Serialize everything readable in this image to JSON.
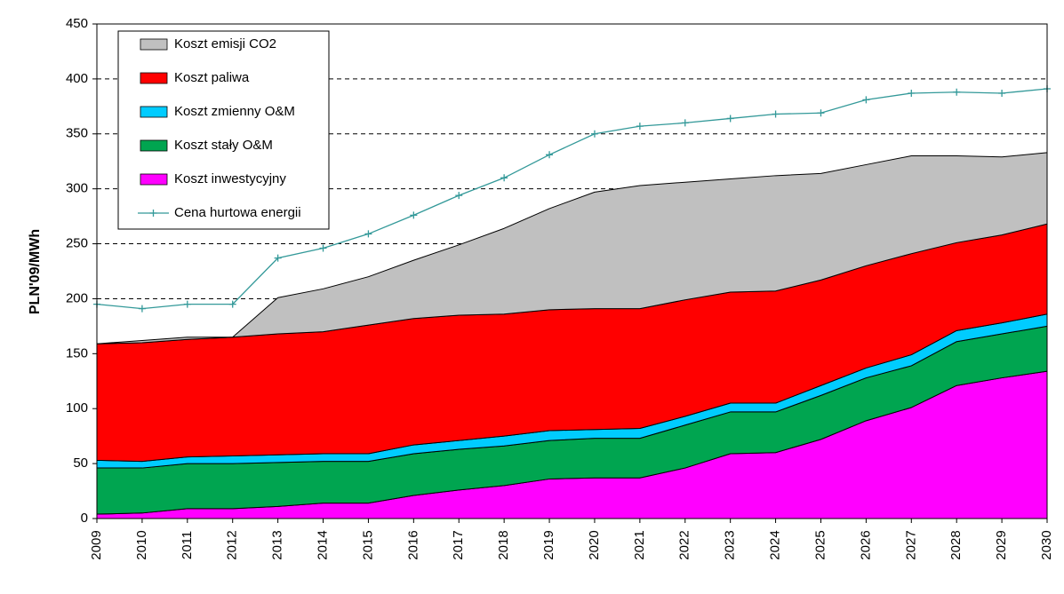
{
  "chart_data": {
    "type": "area",
    "y_label": "PLN'09/MWh",
    "categories": [
      "2009",
      "2010",
      "2011",
      "2012",
      "2013",
      "2014",
      "2015",
      "2016",
      "2017",
      "2018",
      "2019",
      "2020",
      "2021",
      "2022",
      "2023",
      "2024",
      "2025",
      "2026",
      "2027",
      "2028",
      "2029",
      "2030"
    ],
    "ylim": [
      0,
      450
    ],
    "yticks": [
      0,
      50,
      100,
      150,
      200,
      250,
      300,
      350,
      400,
      450
    ],
    "grid": true,
    "stacked": true,
    "legend": "upper left",
    "series": [
      {
        "name": "Koszt emisji CO2",
        "color": "#c0c0c0",
        "values": [
          0,
          2,
          2,
          0,
          33,
          39,
          44,
          53,
          64,
          78,
          92,
          106,
          112,
          107,
          103,
          105,
          97,
          92,
          89,
          79,
          71,
          65
        ]
      },
      {
        "name": "Koszt paliwa",
        "color": "#ff0000",
        "values": [
          106,
          108,
          107,
          108,
          110,
          111,
          117,
          115,
          114,
          111,
          110,
          110,
          109,
          106,
          101,
          102,
          96,
          93,
          92,
          80,
          80,
          82
        ]
      },
      {
        "name": "Koszt zmienny O&M",
        "color": "#00ccff",
        "values": [
          7,
          6,
          6,
          7,
          7,
          7,
          7,
          8,
          8,
          9,
          9,
          8,
          9,
          8,
          8,
          8,
          9,
          9,
          10,
          10,
          10,
          11
        ]
      },
      {
        "name": "Koszt stały O&M",
        "color": "#00a550",
        "values": [
          42,
          41,
          41,
          41,
          40,
          38,
          38,
          38,
          37,
          36,
          35,
          36,
          36,
          39,
          38,
          37,
          40,
          39,
          38,
          40,
          40,
          41
        ]
      },
      {
        "name": "Koszt inwestycyjny",
        "color": "#ff00ff",
        "values": [
          4,
          5,
          9,
          9,
          11,
          14,
          14,
          21,
          26,
          30,
          36,
          37,
          37,
          46,
          59,
          60,
          72,
          89,
          101,
          121,
          128,
          134
        ]
      },
      {
        "name": "Cena hurtowa energii",
        "color": "#339999",
        "type": "line",
        "values": [
          195,
          191,
          195,
          195,
          237,
          246,
          259,
          276,
          294,
          310,
          331,
          350,
          357,
          360,
          364,
          368,
          369,
          381,
          387,
          388,
          387,
          391
        ]
      }
    ]
  }
}
